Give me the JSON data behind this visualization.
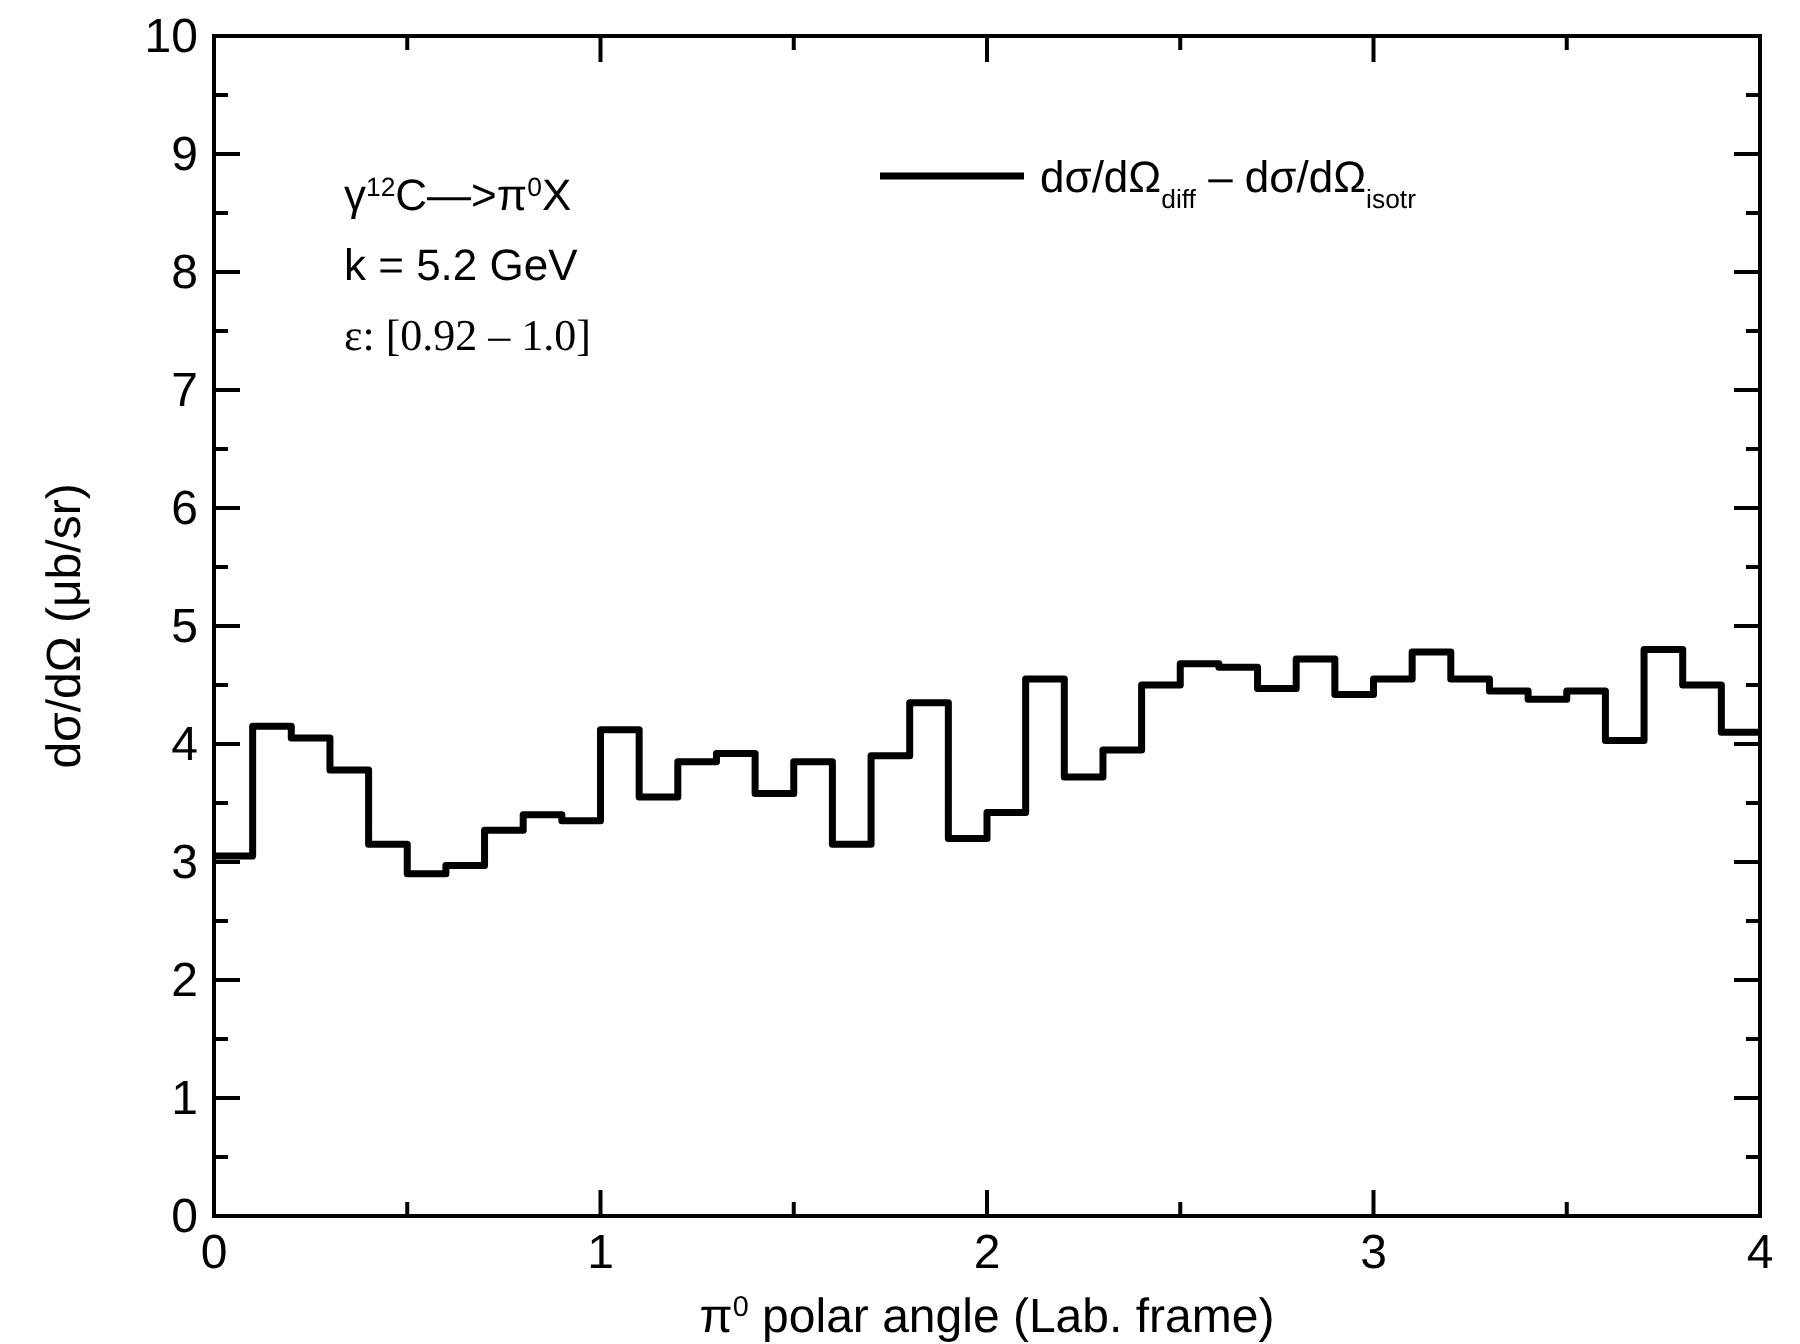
{
  "chart_data": {
    "type": "histogram",
    "xlabel": "π$^{0}$ polar angle (Lab. frame)",
    "ylabel": "dσ/dΩ (μb/sr)",
    "bins": [
      0,
      0.1,
      0.2,
      0.3,
      0.4,
      0.5,
      0.6,
      0.7,
      0.8,
      0.9,
      1.0,
      1.1,
      1.2,
      1.3,
      1.4,
      1.5,
      1.6,
      1.7,
      1.8,
      1.9,
      2.0,
      2.1,
      2.2,
      2.3,
      2.4,
      2.5,
      2.6,
      2.7,
      2.8,
      2.9,
      3.0,
      3.1,
      3.2,
      3.3,
      3.4,
      3.5,
      3.6,
      3.7,
      3.8,
      3.9,
      4.0
    ],
    "series": [
      {
        "name": "dσ/dΩ$_{diff}$ – dσ/dΩ$_{isotr}$",
        "color": "#000000",
        "values": [
          3.05,
          4.15,
          4.05,
          3.78,
          3.15,
          2.9,
          2.97,
          3.27,
          3.4,
          3.35,
          4.12,
          3.55,
          3.85,
          3.92,
          3.58,
          3.85,
          3.15,
          3.9,
          4.35,
          3.2,
          3.42,
          4.55,
          3.72,
          3.95,
          4.5,
          4.68,
          4.65,
          4.47,
          4.72,
          4.42,
          4.55,
          4.78,
          4.55,
          4.45,
          4.38,
          4.45,
          4.03,
          4.8,
          4.5,
          4.1
        ]
      }
    ],
    "xlim": [
      0,
      4
    ],
    "xticks": [
      0,
      {
        "value": 0.5,
        "label": null
      },
      1,
      {
        "value": 1.5,
        "label": null
      },
      2,
      {
        "value": 2.5,
        "label": null
      },
      3,
      {
        "value": 3.5,
        "label": null
      },
      4
    ],
    "ylim": [
      0,
      10
    ],
    "yticks": [
      0,
      {
        "value": 0.5,
        "label": null
      },
      1,
      {
        "value": 1.5,
        "label": null
      },
      2,
      {
        "value": 2.5,
        "label": null
      },
      3,
      {
        "value": 3.5,
        "label": null
      },
      4,
      {
        "value": 4.5,
        "label": null
      },
      5,
      {
        "value": 5.5,
        "label": null
      },
      6,
      {
        "value": 6.5,
        "label": null
      },
      7,
      {
        "value": 7.5,
        "label": null
      },
      8,
      {
        "value": 8.5,
        "label": null
      },
      9,
      {
        "value": 9.5,
        "label": null
      },
      10
    ],
    "annotations": [
      "γ$^{12}$C—>π$^{0}$X",
      "k = 5.2 GeV",
      "ε: [0.92 – 1.0]"
    ],
    "legend": "top right",
    "grid": false,
    "line_style": "solid"
  }
}
